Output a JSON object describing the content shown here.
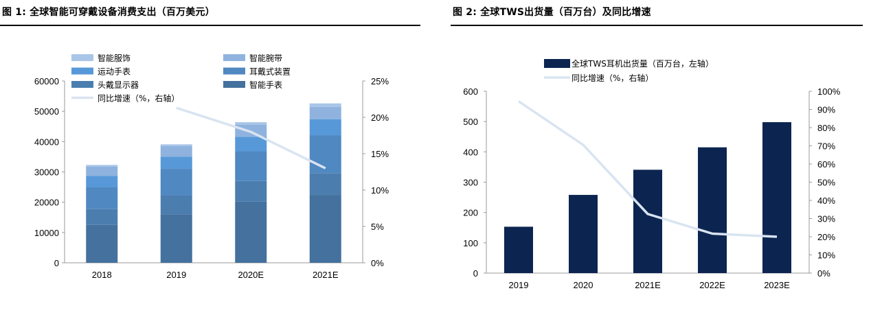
{
  "figures": [
    {
      "title": "图 1:  全球智能可穿戴设备消费支出（百万美元）",
      "chart_data": {
        "type": "bar",
        "stacked": true,
        "categories": [
          "2018",
          "2019",
          "2020E",
          "2021E"
        ],
        "series": [
          {
            "name": "智能手表",
            "values": [
              12500,
              16000,
              20200,
              22400
            ],
            "color": "#44719d"
          },
          {
            "name": "头戴显示器",
            "values": [
              5200,
              6200,
              6800,
              7200
            ],
            "color": "#4b7eaf"
          },
          {
            "name": "耳戴式装置",
            "values": [
              7200,
              8800,
              9800,
              12500
            ],
            "color": "#5088c1"
          },
          {
            "name": "运动手表",
            "values": [
              3800,
              4000,
              4800,
              5300
            ],
            "color": "#5799d8"
          },
          {
            "name": "智能腕带",
            "values": [
              3000,
              3500,
              4000,
              4000
            ],
            "color": "#8fb3de"
          },
          {
            "name": "智能服饰",
            "values": [
              600,
              600,
              800,
              1200
            ],
            "color": "#a9c6e8"
          }
        ],
        "line_series": {
          "name": "同比增速（%，右轴）",
          "x": [
            "2019",
            "2020E",
            "2021E"
          ],
          "values": [
            21.3,
            18.0,
            13.0
          ],
          "color": "#d9e4f1"
        },
        "y_left": {
          "min": 0,
          "max": 60000,
          "ticks": [
            "0",
            "10000",
            "20000",
            "30000",
            "40000",
            "50000",
            "60000"
          ]
        },
        "y_right": {
          "min": 0,
          "max": 25,
          "ticks": [
            "0%",
            "5%",
            "10%",
            "15%",
            "20%",
            "25%"
          ]
        },
        "legend_position": "top",
        "grid": false
      }
    },
    {
      "title": "图 2:  全球TWS出货量（百万台）及同比增速",
      "chart_data": {
        "type": "bar",
        "categories": [
          "2019",
          "2020",
          "2021E",
          "2022E",
          "2023E"
        ],
        "series": [
          {
            "name": "全球TWS耳机出货量（百万台，左轴）",
            "values": [
              153,
              258,
              341,
              415,
              498
            ],
            "color": "#0c2550"
          }
        ],
        "line_series": {
          "name": "同比增速（%，右轴）",
          "x": [
            "2019",
            "2020",
            "2021E",
            "2022E",
            "2023E"
          ],
          "values": [
            94.5,
            70.5,
            32.5,
            21.7,
            20.0
          ],
          "color": "#d9e4f1"
        },
        "y_left": {
          "min": 0,
          "max": 600,
          "ticks": [
            "0",
            "100",
            "200",
            "300",
            "400",
            "500",
            "600"
          ]
        },
        "y_right": {
          "min": 0,
          "max": 100,
          "ticks": [
            "0%",
            "10%",
            "20%",
            "30%",
            "40%",
            "50%",
            "60%",
            "70%",
            "80%",
            "90%",
            "100%"
          ]
        },
        "legend_position": "top",
        "grid": false
      }
    }
  ]
}
